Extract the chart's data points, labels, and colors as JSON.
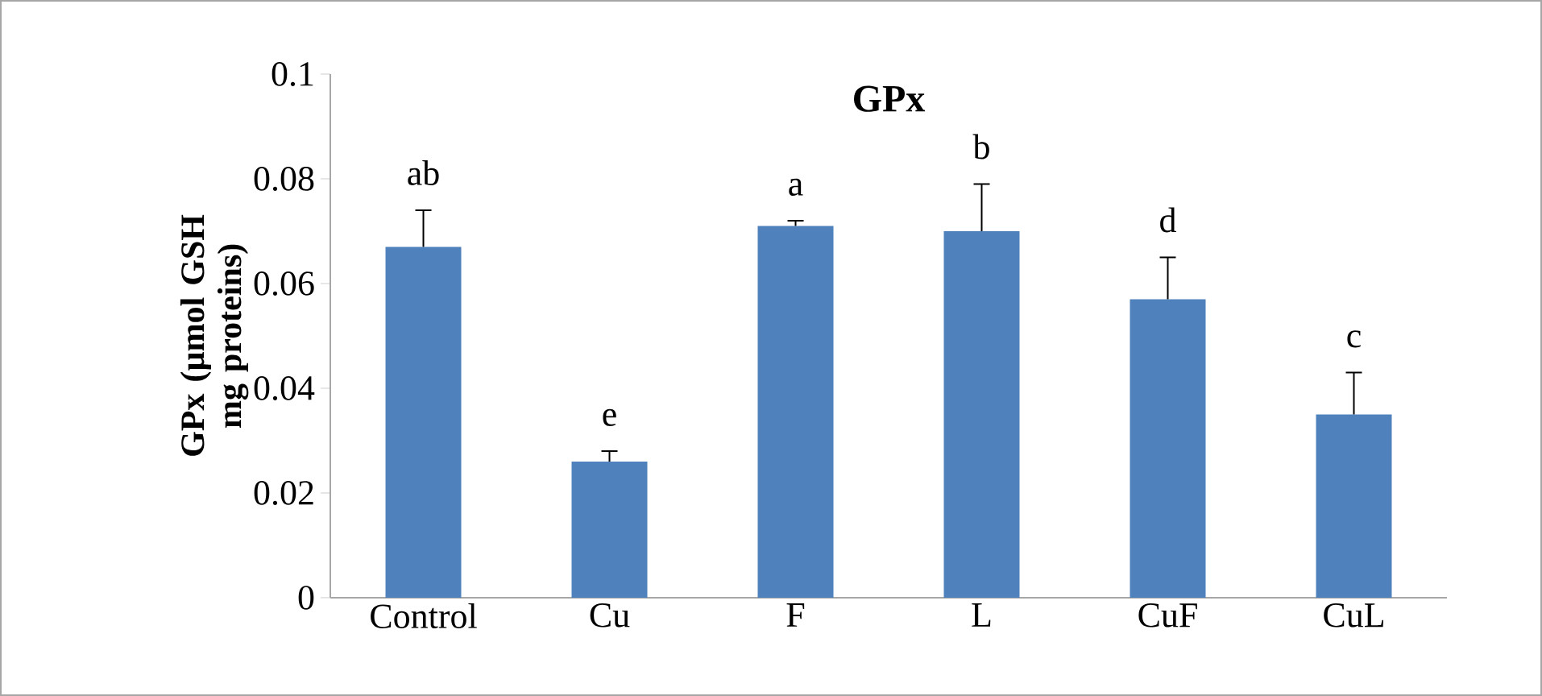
{
  "chart_data": {
    "type": "bar",
    "title": "GPx",
    "ylabel": "GPx (µmol GSH mg proteins)",
    "categories": [
      "Control",
      "Cu",
      "F",
      "L",
      "CuF",
      "CuL"
    ],
    "values": [
      0.067,
      0.026,
      0.071,
      0.07,
      0.057,
      0.035
    ],
    "errors": [
      [
        0.067,
        0.074
      ],
      [
        0.026,
        0.028
      ],
      [
        0.071,
        0.072
      ],
      [
        0.07,
        0.079
      ],
      [
        0.057,
        0.065
      ],
      [
        0.035,
        0.043
      ]
    ],
    "color": "#4f81bd",
    "ylim": [
      0,
      0.1
    ],
    "yticks": [
      0,
      0.02,
      0.04,
      0.06,
      0.08,
      0.1
    ],
    "grid": false,
    "annotations": [
      "ab",
      "e",
      "a",
      "b",
      "d",
      "c"
    ]
  }
}
